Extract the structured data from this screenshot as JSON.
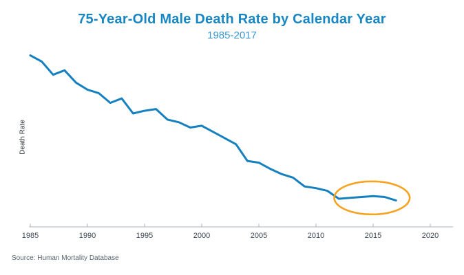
{
  "header": {
    "title": "75-Year-Old Male Death Rate by Calendar Year",
    "subtitle": "1985-2017"
  },
  "footer": {
    "source": "Source: Human Mortality Database"
  },
  "colors": {
    "title_blue": "#1786c3",
    "line_blue": "#1480bf",
    "highlight_orange": "#F5A31F",
    "axis_gray": "#a8b2bb",
    "tick_text": "#3d4751"
  },
  "chart_data": {
    "type": "line",
    "title": "75-Year-Old Male Death Rate by Calendar Year",
    "subtitle": "1985-2017",
    "xlabel": "",
    "ylabel": "Death Rate",
    "x": [
      1985,
      1986,
      1987,
      1988,
      1989,
      1990,
      1991,
      1992,
      1993,
      1994,
      1995,
      1996,
      1997,
      1998,
      1999,
      2000,
      2001,
      2002,
      2003,
      2004,
      2005,
      2006,
      2007,
      2008,
      2009,
      2010,
      2011,
      2012,
      2013,
      2014,
      2015,
      2016,
      2017
    ],
    "values": [
      0.045,
      0.0443,
      0.0428,
      0.0433,
      0.0419,
      0.0411,
      0.0407,
      0.0396,
      0.0401,
      0.0384,
      0.0387,
      0.0389,
      0.0377,
      0.0374,
      0.0368,
      0.037,
      0.0363,
      0.0356,
      0.0349,
      0.033,
      0.0328,
      0.0321,
      0.0315,
      0.0311,
      0.0301,
      0.0299,
      0.0296,
      0.0287,
      0.0288,
      0.0289,
      0.029,
      0.0289,
      0.0285
    ],
    "x_ticks": [
      1985,
      1990,
      1995,
      2000,
      2005,
      2010,
      2015,
      2020
    ],
    "xlim": [
      1984.9,
      2022.0
    ],
    "ylim": [
      0.0255,
      0.0452
    ],
    "grid": false,
    "legend": "none",
    "y_tick_labels_shown": false,
    "annotations": [
      {
        "type": "ellipse",
        "purpose": "highlight-flat-mortality-2012-2017",
        "year_span": [
          2011.6,
          2018.2
        ],
        "color": "#F5A31F"
      }
    ]
  }
}
